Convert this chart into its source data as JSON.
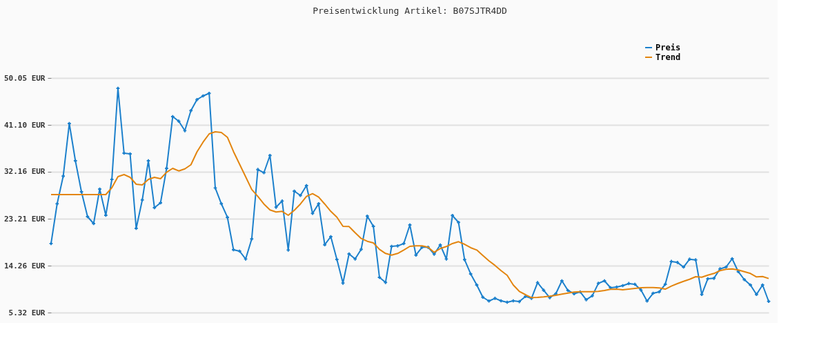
{
  "chart_data": {
    "type": "line",
    "title": "Preisentwicklung Artikel: B07SJTR4DD",
    "categories": [
      null,
      null,
      null,
      null,
      null,
      null,
      null,
      null,
      null,
      null,
      null,
      null,
      null,
      null,
      null,
      null,
      null,
      null,
      null,
      null,
      null,
      null,
      null,
      null,
      null,
      null,
      null,
      null,
      null,
      null,
      null,
      null,
      null,
      null,
      null,
      null,
      null,
      null,
      null,
      null,
      null,
      null,
      null,
      null,
      null,
      null,
      null,
      null,
      null,
      null,
      null,
      null,
      null,
      null,
      null,
      null,
      null,
      null,
      null,
      null,
      null,
      null,
      null,
      null,
      null,
      null,
      null,
      null,
      null,
      null,
      null,
      null,
      null,
      null,
      null,
      null,
      null,
      null,
      null,
      null,
      null,
      null,
      null,
      null,
      null,
      null,
      null,
      null,
      null,
      null,
      null,
      null,
      null,
      null,
      null,
      null,
      null,
      null,
      null,
      null,
      null,
      null,
      null,
      null,
      null,
      null,
      null,
      null,
      null,
      null,
      null,
      null,
      null,
      null,
      null,
      null,
      null,
      null,
      null
    ],
    "series": [
      {
        "name": "Preis",
        "color": "#1c80cc",
        "marker": "cross",
        "values": [
          18.48,
          26.07,
          31.33,
          41.37,
          34.26,
          28.34,
          23.61,
          22.29,
          28.87,
          23.87,
          30.71,
          48.08,
          35.71,
          35.58,
          21.37,
          26.8,
          34.26,
          25.32,
          26.24,
          32.82,
          42.68,
          41.8,
          40.01,
          43.83,
          45.93,
          46.63,
          47.12,
          29.09,
          26.07,
          23.48,
          17.29,
          17.03,
          15.54,
          19.36,
          32.59,
          31.99,
          35.28,
          25.41,
          26.59,
          17.25,
          28.47,
          27.65,
          29.53,
          24.23,
          26.07,
          18.25,
          19.79,
          15.45,
          10.94,
          16.5,
          15.54,
          17.38,
          23.7,
          21.77,
          12.03,
          11.07,
          17.95,
          18.04,
          18.48,
          22.03,
          16.28,
          17.78,
          17.78,
          16.46,
          18.21,
          15.54,
          23.83,
          22.52,
          15.41,
          12.69,
          10.58,
          8.25,
          7.52,
          8.04,
          7.56,
          7.29,
          7.56,
          7.42,
          8.39,
          8.04,
          11.02,
          9.57,
          8.17,
          8.91,
          11.37,
          9.53,
          8.91,
          9.27,
          7.78,
          8.52,
          10.89,
          11.37,
          10.06,
          10.19,
          10.45,
          10.85,
          10.71,
          9.62,
          7.52,
          9.0,
          9.27,
          10.71,
          15.06,
          14.88,
          14.0,
          15.49,
          15.36,
          8.78,
          11.77,
          11.86,
          13.65,
          14.0,
          15.58,
          13.12,
          11.6,
          10.58,
          8.78,
          10.58,
          7.46
        ]
      },
      {
        "name": "Trend",
        "color": "#e3850f",
        "marker": "none",
        "values": [
          27.82,
          27.82,
          27.82,
          27.82,
          27.82,
          27.82,
          27.82,
          27.82,
          27.82,
          27.82,
          29.13,
          31.24,
          31.63,
          31.11,
          29.79,
          29.66,
          30.71,
          31.11,
          30.84,
          32.07,
          32.82,
          32.33,
          32.72,
          33.51,
          35.97,
          37.82,
          39.39,
          39.79,
          39.66,
          38.74,
          36.01,
          33.6,
          31.2,
          28.78,
          27.46,
          26.01,
          24.88,
          24.49,
          24.62,
          23.87,
          24.83,
          26.01,
          27.46,
          27.99,
          27.33,
          26.01,
          24.62,
          23.51,
          21.76,
          21.72,
          20.54,
          19.44,
          18.91,
          18.61,
          17.38,
          16.59,
          16.28,
          16.59,
          17.25,
          17.95,
          18.04,
          18.04,
          17.78,
          16.81,
          17.52,
          17.91,
          18.48,
          18.83,
          18.34,
          17.69,
          17.25,
          16.2,
          15.19,
          14.31,
          13.31,
          12.42,
          10.58,
          9.36,
          8.74,
          8.17,
          8.21,
          8.31,
          8.44,
          8.61,
          8.83,
          9.04,
          9.23,
          9.31,
          9.31,
          9.31,
          9.36,
          9.53,
          9.75,
          9.79,
          9.66,
          9.79,
          9.92,
          10.06,
          10.1,
          10.1,
          10.02,
          9.79,
          10.36,
          10.85,
          11.28,
          11.67,
          12.16,
          12.07,
          12.46,
          12.78,
          13.31,
          13.57,
          13.65,
          13.44,
          13.12,
          12.78,
          12.12,
          12.2,
          11.81
        ]
      }
    ],
    "ylim": [
      5.32,
      50.05
    ],
    "yticks": [
      {
        "value": 5.32,
        "label": "5.32 EUR"
      },
      {
        "value": 14.26,
        "label": "14.26 EUR"
      },
      {
        "value": 23.21,
        "label": "23.21 EUR"
      },
      {
        "value": 32.16,
        "label": "32.16 EUR"
      },
      {
        "value": 41.1,
        "label": "41.10 EUR"
      },
      {
        "value": 50.05,
        "label": "50.05 EUR"
      }
    ],
    "tick_labels": "y",
    "grid": "y",
    "legend": "top right",
    "line_style": "solid"
  }
}
